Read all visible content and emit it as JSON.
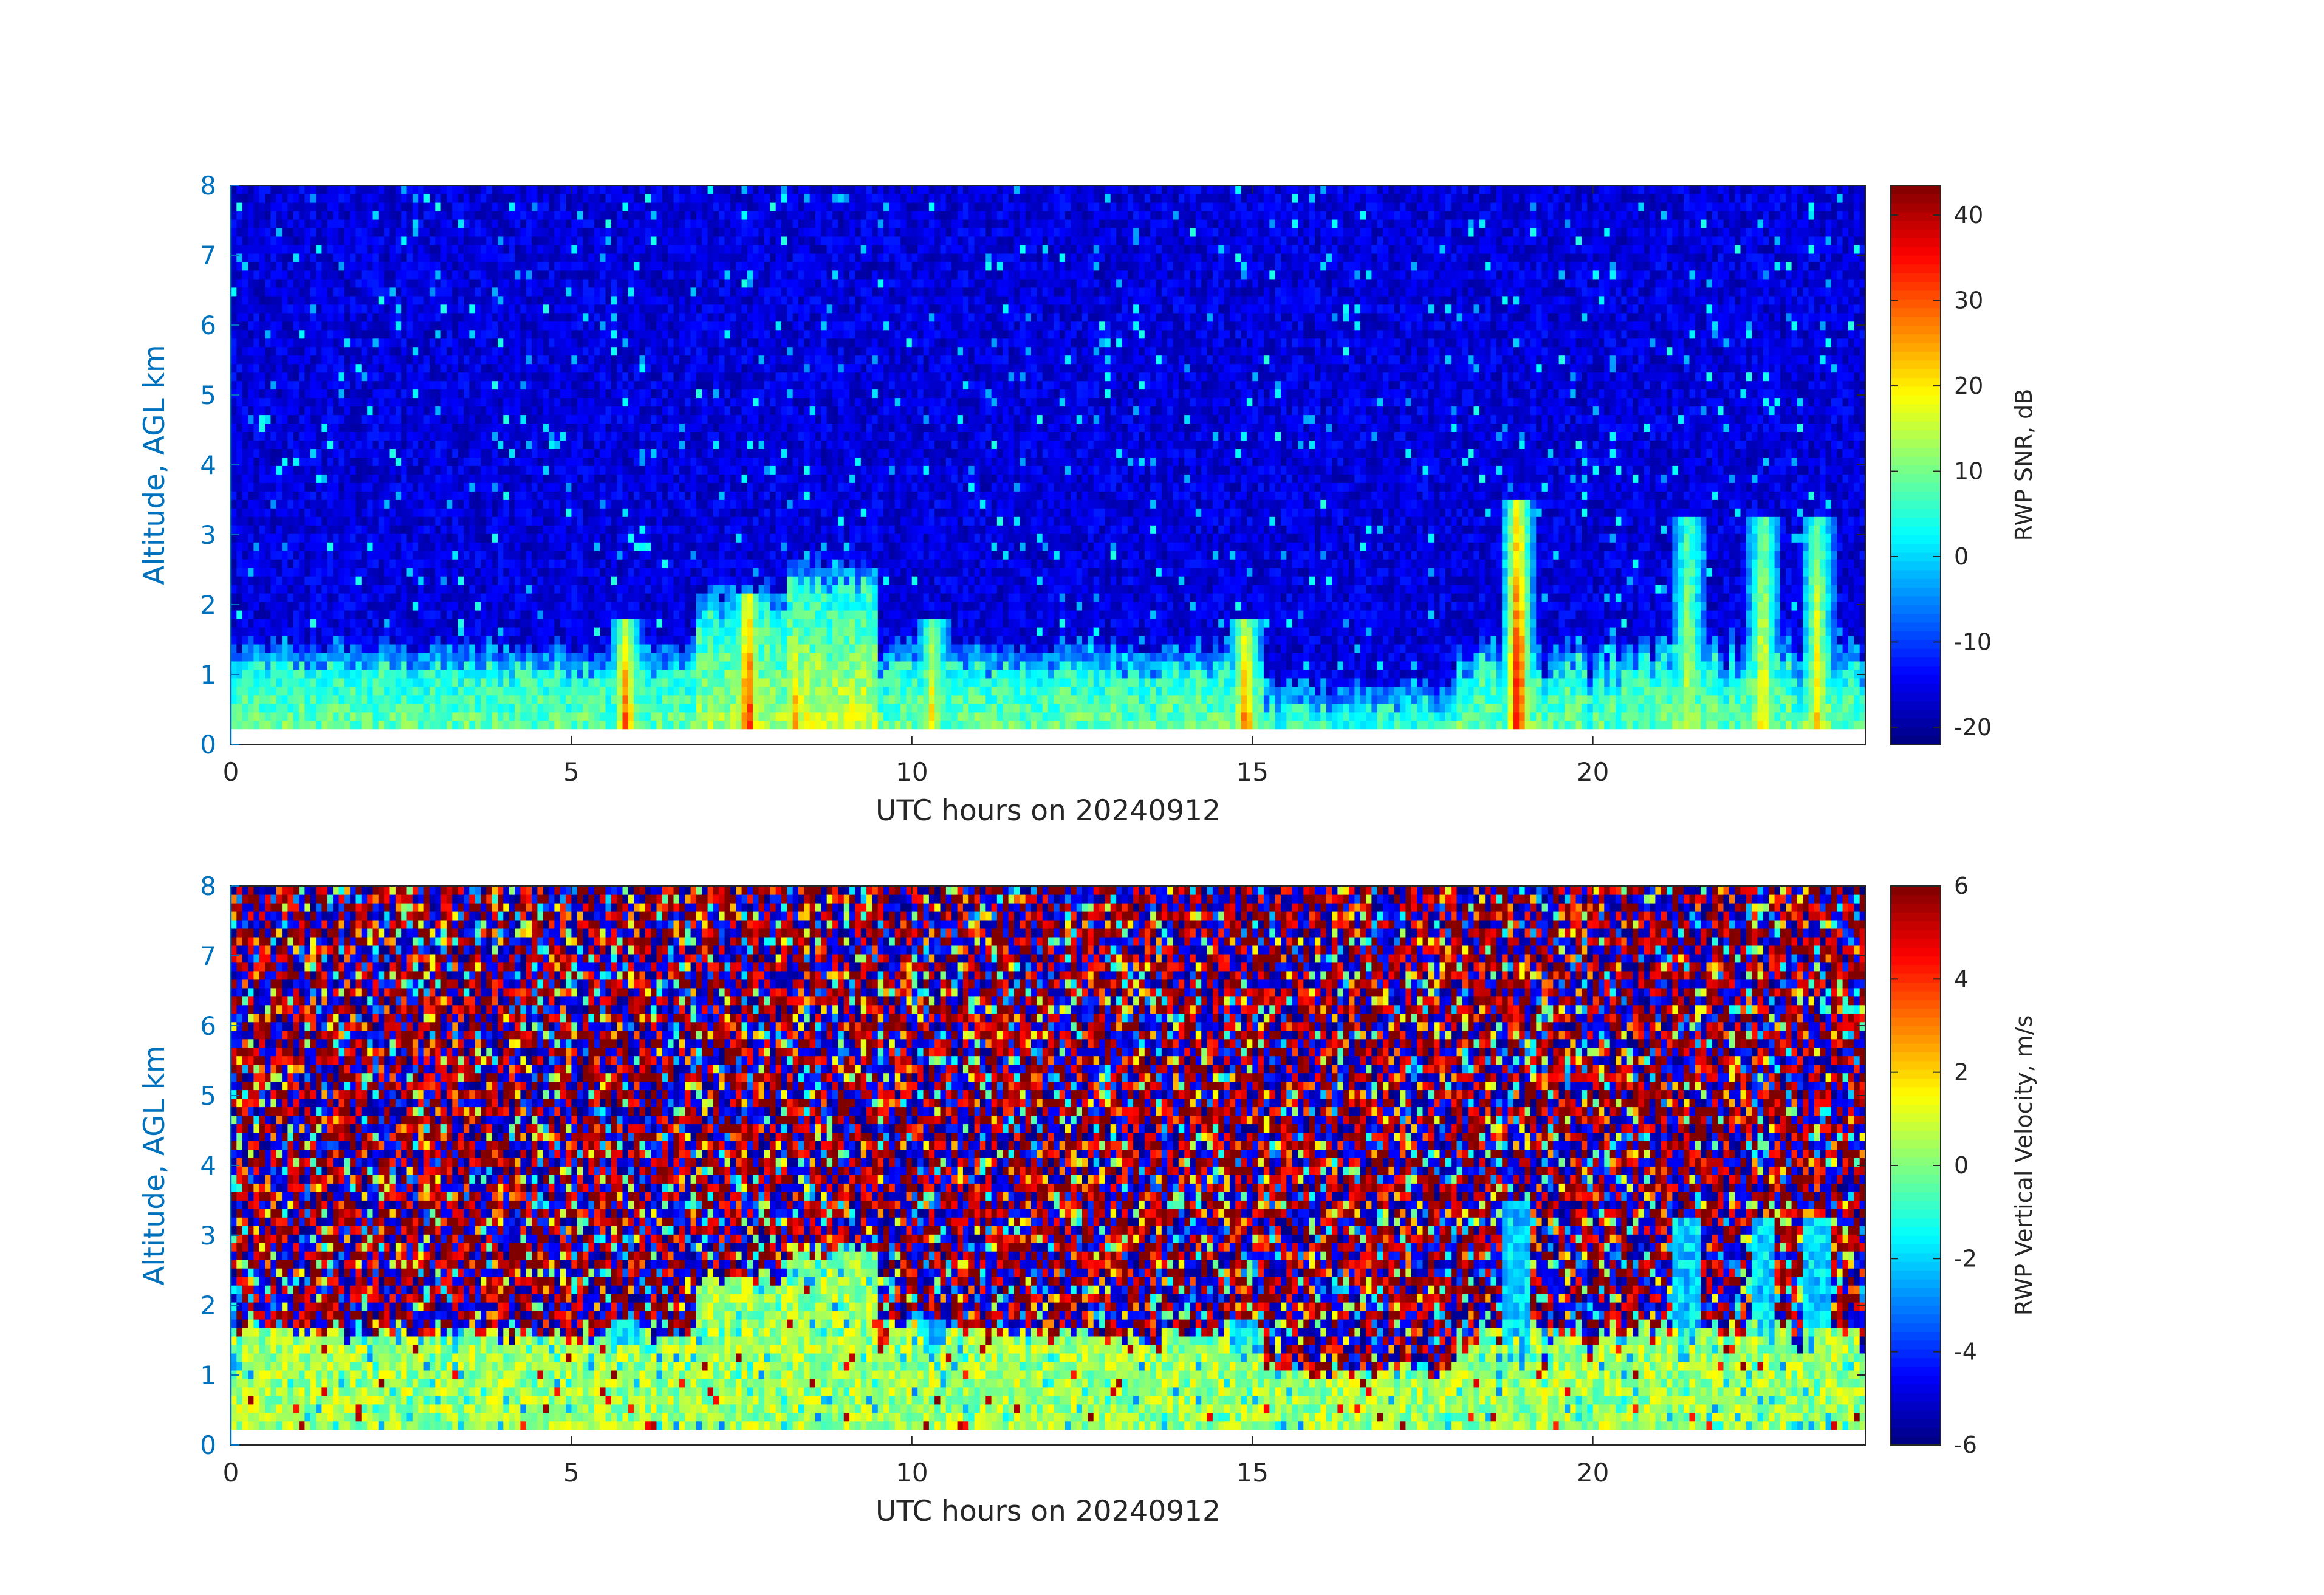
{
  "figure": {
    "axis_color": "#0072BD",
    "text_color": "#262626"
  },
  "chart_data": [
    {
      "type": "heatmap",
      "title": "",
      "xlabel": "UTC hours on 20240912",
      "ylabel": "Altitude, AGL km",
      "xlim": [
        0,
        24
      ],
      "ylim": [
        0,
        8
      ],
      "xticks": [
        0,
        5,
        10,
        15,
        20
      ],
      "yticks": [
        0,
        1,
        2,
        3,
        4,
        5,
        6,
        7,
        8
      ],
      "colormap": "jet",
      "colorbar": {
        "label": "RWP SNR, dB",
        "clim": [
          -22,
          43.5
        ],
        "ticks": [
          40,
          30,
          20,
          10,
          0,
          -10,
          -20
        ]
      },
      "data_range_altitude_km": [
        0.22,
        8.0
      ],
      "features": [
        {
          "description": "low-level boundary layer returns",
          "altitude_top_km": 1.5,
          "snr_db_range": [
            -5,
            15
          ]
        },
        {
          "description": "noise background aloft",
          "snr_db_range": [
            -22,
            -12
          ]
        }
      ],
      "peaks": [
        {
          "hour": 5.8,
          "top_km": 1.8,
          "max_snr_db": 35
        },
        {
          "hour": 7.6,
          "top_km": 2.2,
          "max_snr_db": 40
        },
        {
          "hour": 8.3,
          "top_km": 1.5,
          "max_snr_db": 30
        },
        {
          "hour": 10.3,
          "top_km": 1.8,
          "max_snr_db": 25
        },
        {
          "hour": 14.9,
          "top_km": 1.8,
          "max_snr_db": 35
        },
        {
          "hour": 18.9,
          "top_km": 3.5,
          "max_snr_db": 42
        },
        {
          "hour": 21.4,
          "top_km": 3.2,
          "max_snr_db": 20
        },
        {
          "hour": 22.5,
          "top_km": 3.2,
          "max_snr_db": 25
        },
        {
          "hour": 23.3,
          "top_km": 3.3,
          "max_snr_db": 25
        }
      ]
    },
    {
      "type": "heatmap",
      "title": "",
      "xlabel": "UTC hours on 20240912",
      "ylabel": "Altitude, AGL km",
      "xlim": [
        0,
        24
      ],
      "ylim": [
        0,
        8
      ],
      "xticks": [
        0,
        5,
        10,
        15,
        20
      ],
      "yticks": [
        0,
        1,
        2,
        3,
        4,
        5,
        6,
        7,
        8
      ],
      "colormap": "jet",
      "colorbar": {
        "label": "RWP Vertical Velocity, m/s",
        "clim": [
          -6,
          6
        ],
        "ticks": [
          6,
          4,
          2,
          0,
          -2,
          -4,
          -6
        ]
      },
      "data_range_altitude_km": [
        0.22,
        8.0
      ],
      "features": [
        {
          "description": "boundary layer near-zero velocities",
          "altitude_top_km": 1.6,
          "velocity_ms_range": [
            -2,
            1.5
          ]
        },
        {
          "description": "noisy velocities aloft saturating colour scale",
          "velocity_ms_range": [
            -6,
            6
          ]
        }
      ]
    }
  ]
}
